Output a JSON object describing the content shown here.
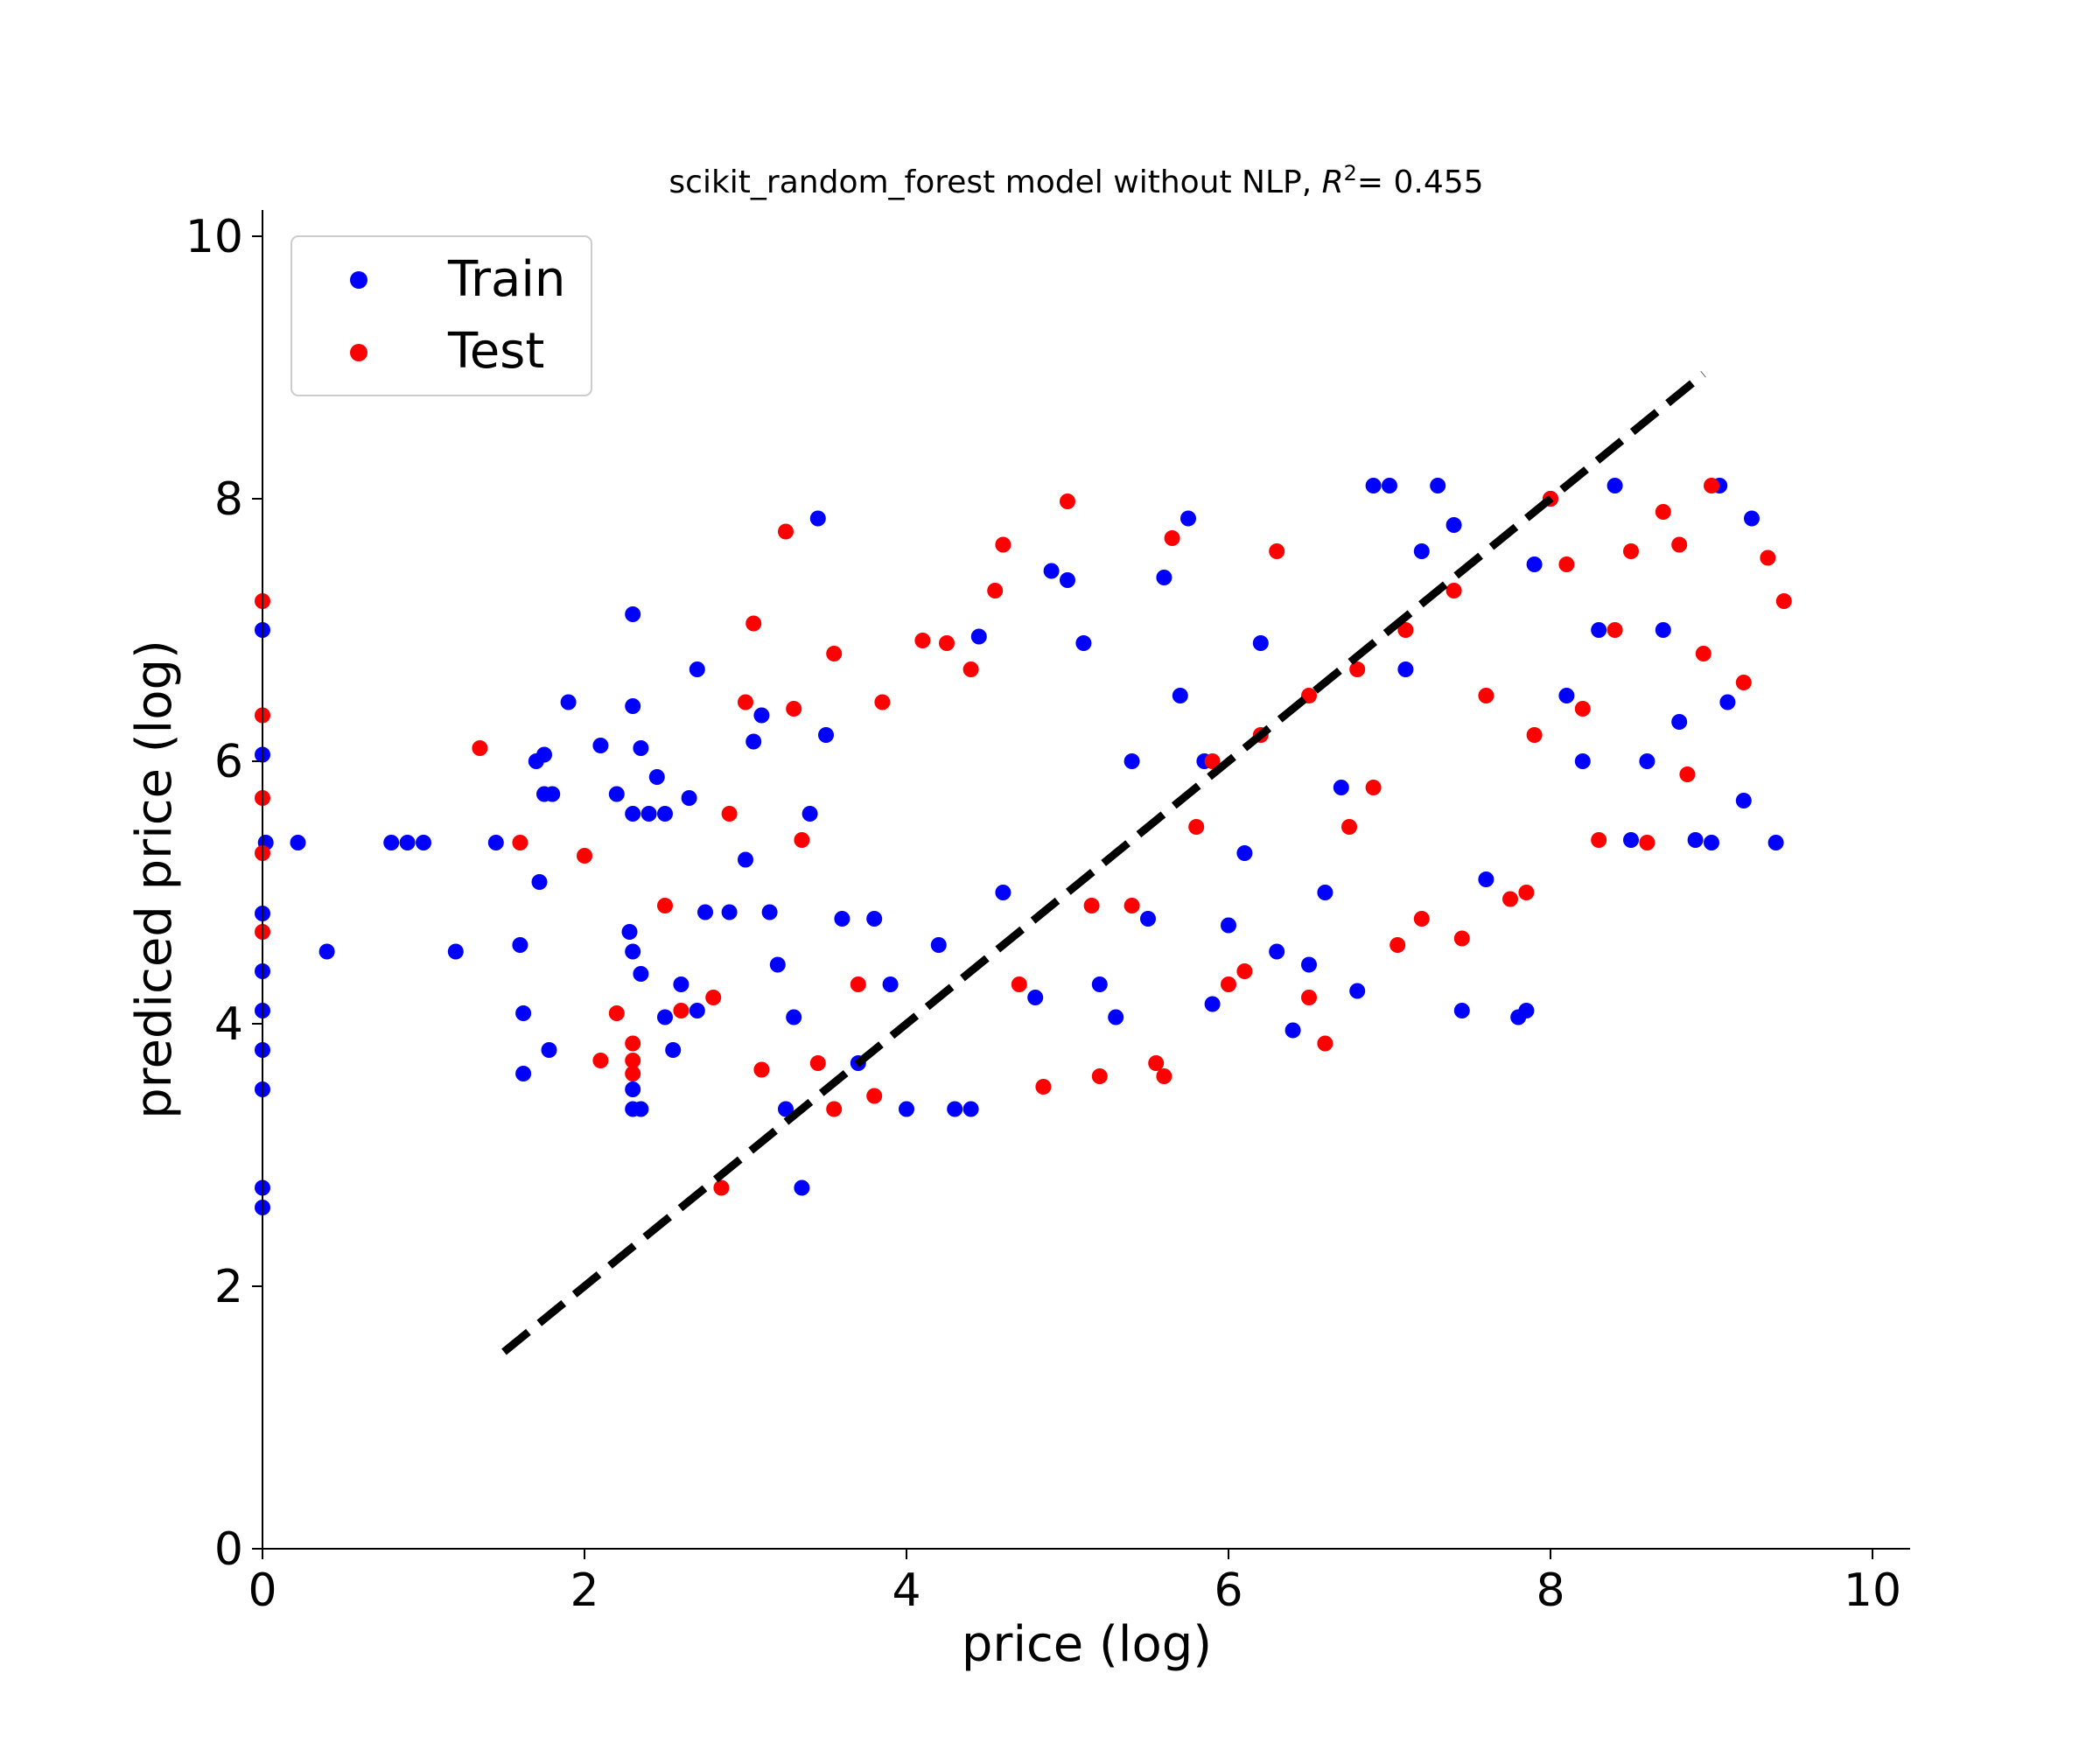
{
  "chart_data": {
    "type": "scatter",
    "title": "scikit_random_forest model without NLP, R²= 0.455",
    "title_parts": {
      "prefix": "scikit_random_forest model without NLP, ",
      "r_symbol": "R",
      "r_superscript": "2",
      "suffix": "= 0.455"
    },
    "xlabel": "price (log)",
    "ylabel": "prediced price (log)",
    "xlim": [
      0,
      10.2
    ],
    "ylim": [
      0,
      10.2
    ],
    "xticks": [
      0,
      2,
      4,
      6,
      8,
      10
    ],
    "yticks": [
      0,
      2,
      4,
      6,
      8,
      10
    ],
    "xtick_labels": [
      "0",
      "2",
      "4",
      "6",
      "8",
      "10"
    ],
    "ytick_labels": [
      "0",
      "2",
      "4",
      "6",
      "8",
      "10"
    ],
    "grid": false,
    "legend_position": "top-left",
    "reference_line": {
      "style": "dashed",
      "color": "#000000",
      "x": [
        1.5,
        8.95
      ],
      "y": [
        1.5,
        8.95
      ]
    },
    "series": [
      {
        "name": "Train",
        "color": "#0000ff",
        "points": [
          [
            0.0,
            7.0
          ],
          [
            0.0,
            6.05
          ],
          [
            0.02,
            5.38
          ],
          [
            0.0,
            4.84
          ],
          [
            0.0,
            4.4
          ],
          [
            0.0,
            4.1
          ],
          [
            0.0,
            3.8
          ],
          [
            0.0,
            3.5
          ],
          [
            0.0,
            2.75
          ],
          [
            0.0,
            2.6
          ],
          [
            0.22,
            5.38
          ],
          [
            0.4,
            4.55
          ],
          [
            0.8,
            5.38
          ],
          [
            0.9,
            5.38
          ],
          [
            1.0,
            5.38
          ],
          [
            1.2,
            4.55
          ],
          [
            1.45,
            5.38
          ],
          [
            1.6,
            4.6
          ],
          [
            1.62,
            4.08
          ],
          [
            1.62,
            3.62
          ],
          [
            1.7,
            6.0
          ],
          [
            1.75,
            6.05
          ],
          [
            1.75,
            5.75
          ],
          [
            1.8,
            5.75
          ],
          [
            1.72,
            5.08
          ],
          [
            1.78,
            3.8
          ],
          [
            1.9,
            6.45
          ],
          [
            2.1,
            6.12
          ],
          [
            2.3,
            7.12
          ],
          [
            2.35,
            6.1
          ],
          [
            2.3,
            6.42
          ],
          [
            2.45,
            5.88
          ],
          [
            2.5,
            5.6
          ],
          [
            2.2,
            5.75
          ],
          [
            2.3,
            5.6
          ],
          [
            2.4,
            5.6
          ],
          [
            2.28,
            4.7
          ],
          [
            2.3,
            4.55
          ],
          [
            2.35,
            4.38
          ],
          [
            2.3,
            3.5
          ],
          [
            2.3,
            3.35
          ],
          [
            2.35,
            3.35
          ],
          [
            2.5,
            4.05
          ],
          [
            2.55,
            3.8
          ],
          [
            2.6,
            4.3
          ],
          [
            2.7,
            6.7
          ],
          [
            2.65,
            5.72
          ],
          [
            2.7,
            4.1
          ],
          [
            2.75,
            4.85
          ],
          [
            2.9,
            4.85
          ],
          [
            3.0,
            5.25
          ],
          [
            3.05,
            6.15
          ],
          [
            3.1,
            6.35
          ],
          [
            3.15,
            4.85
          ],
          [
            3.2,
            4.45
          ],
          [
            3.3,
            4.05
          ],
          [
            3.4,
            5.6
          ],
          [
            3.45,
            7.85
          ],
          [
            3.5,
            6.2
          ],
          [
            3.35,
            2.75
          ],
          [
            3.25,
            3.35
          ],
          [
            3.6,
            4.8
          ],
          [
            3.7,
            3.7
          ],
          [
            3.8,
            4.8
          ],
          [
            3.9,
            4.3
          ],
          [
            4.0,
            3.35
          ],
          [
            4.2,
            4.6
          ],
          [
            4.3,
            3.35
          ],
          [
            4.4,
            3.35
          ],
          [
            4.45,
            6.95
          ],
          [
            4.6,
            5.0
          ],
          [
            4.8,
            4.2
          ],
          [
            4.9,
            7.45
          ],
          [
            5.0,
            7.38
          ],
          [
            5.1,
            6.9
          ],
          [
            5.2,
            4.3
          ],
          [
            5.3,
            4.05
          ],
          [
            5.5,
            4.8
          ],
          [
            5.6,
            7.4
          ],
          [
            5.7,
            6.5
          ],
          [
            5.75,
            7.85
          ],
          [
            5.9,
            4.15
          ],
          [
            6.0,
            4.75
          ],
          [
            6.1,
            5.3
          ],
          [
            6.2,
            6.9
          ],
          [
            6.3,
            4.55
          ],
          [
            6.4,
            3.95
          ],
          [
            6.5,
            4.45
          ],
          [
            6.6,
            5.0
          ],
          [
            6.8,
            4.25
          ],
          [
            6.9,
            8.1
          ],
          [
            7.0,
            8.1
          ],
          [
            7.2,
            7.6
          ],
          [
            7.3,
            8.1
          ],
          [
            7.4,
            7.8
          ],
          [
            7.45,
            4.1
          ],
          [
            7.6,
            5.1
          ],
          [
            7.8,
            4.05
          ],
          [
            7.85,
            4.1
          ],
          [
            7.9,
            7.5
          ],
          [
            8.0,
            8.0
          ],
          [
            8.1,
            6.5
          ],
          [
            8.2,
            6.0
          ],
          [
            8.3,
            7.0
          ],
          [
            8.4,
            8.1
          ],
          [
            8.5,
            5.4
          ],
          [
            8.6,
            6.0
          ],
          [
            8.7,
            7.0
          ],
          [
            8.8,
            6.3
          ],
          [
            8.9,
            5.4
          ],
          [
            9.0,
            5.38
          ],
          [
            9.05,
            8.1
          ],
          [
            9.1,
            6.45
          ],
          [
            9.2,
            5.7
          ],
          [
            9.25,
            7.85
          ],
          [
            9.4,
            5.38
          ],
          [
            5.85,
            6.0
          ],
          [
            6.7,
            5.8
          ],
          [
            7.1,
            6.7
          ],
          [
            5.4,
            6.0
          ]
        ]
      },
      {
        "name": "Test",
        "color": "#ff0000",
        "points": [
          [
            0.0,
            7.22
          ],
          [
            0.0,
            6.35
          ],
          [
            0.0,
            5.72
          ],
          [
            0.0,
            5.3
          ],
          [
            0.0,
            4.7
          ],
          [
            1.35,
            6.1
          ],
          [
            1.6,
            5.38
          ],
          [
            2.0,
            5.28
          ],
          [
            2.1,
            3.72
          ],
          [
            2.2,
            4.08
          ],
          [
            2.3,
            3.85
          ],
          [
            2.3,
            3.62
          ],
          [
            2.3,
            3.72
          ],
          [
            2.5,
            4.9
          ],
          [
            2.6,
            4.1
          ],
          [
            2.8,
            4.2
          ],
          [
            2.85,
            2.75
          ],
          [
            2.9,
            5.6
          ],
          [
            3.0,
            6.45
          ],
          [
            3.05,
            7.05
          ],
          [
            3.1,
            3.65
          ],
          [
            3.25,
            7.75
          ],
          [
            3.3,
            6.4
          ],
          [
            3.35,
            5.4
          ],
          [
            3.45,
            3.7
          ],
          [
            3.55,
            3.35
          ],
          [
            3.55,
            6.82
          ],
          [
            3.7,
            4.3
          ],
          [
            3.8,
            3.45
          ],
          [
            3.85,
            6.45
          ],
          [
            4.1,
            6.92
          ],
          [
            4.25,
            6.9
          ],
          [
            4.4,
            6.7
          ],
          [
            4.55,
            7.3
          ],
          [
            4.6,
            7.65
          ],
          [
            4.7,
            4.3
          ],
          [
            4.85,
            3.52
          ],
          [
            5.0,
            7.98
          ],
          [
            5.15,
            4.9
          ],
          [
            5.2,
            3.6
          ],
          [
            5.4,
            4.9
          ],
          [
            5.55,
            3.7
          ],
          [
            5.6,
            3.6
          ],
          [
            5.65,
            7.7
          ],
          [
            5.8,
            5.5
          ],
          [
            6.0,
            4.3
          ],
          [
            6.1,
            4.4
          ],
          [
            6.3,
            7.6
          ],
          [
            6.5,
            4.2
          ],
          [
            6.6,
            3.85
          ],
          [
            6.75,
            5.5
          ],
          [
            6.9,
            5.8
          ],
          [
            7.05,
            4.6
          ],
          [
            7.2,
            4.8
          ],
          [
            7.45,
            4.65
          ],
          [
            7.6,
            6.5
          ],
          [
            7.75,
            4.95
          ],
          [
            7.85,
            5.0
          ],
          [
            7.9,
            6.2
          ],
          [
            8.0,
            8.0
          ],
          [
            8.1,
            7.5
          ],
          [
            8.2,
            6.4
          ],
          [
            8.3,
            5.4
          ],
          [
            8.4,
            7.0
          ],
          [
            8.5,
            7.6
          ],
          [
            8.6,
            5.38
          ],
          [
            8.7,
            7.9
          ],
          [
            8.8,
            7.65
          ],
          [
            8.85,
            5.9
          ],
          [
            8.95,
            6.82
          ],
          [
            9.0,
            8.1
          ],
          [
            9.2,
            6.6
          ],
          [
            9.35,
            7.55
          ],
          [
            9.45,
            7.22
          ],
          [
            6.2,
            6.2
          ],
          [
            6.5,
            6.5
          ],
          [
            6.8,
            6.7
          ],
          [
            7.1,
            7.0
          ],
          [
            7.4,
            7.3
          ],
          [
            5.9,
            6.0
          ]
        ]
      }
    ]
  }
}
